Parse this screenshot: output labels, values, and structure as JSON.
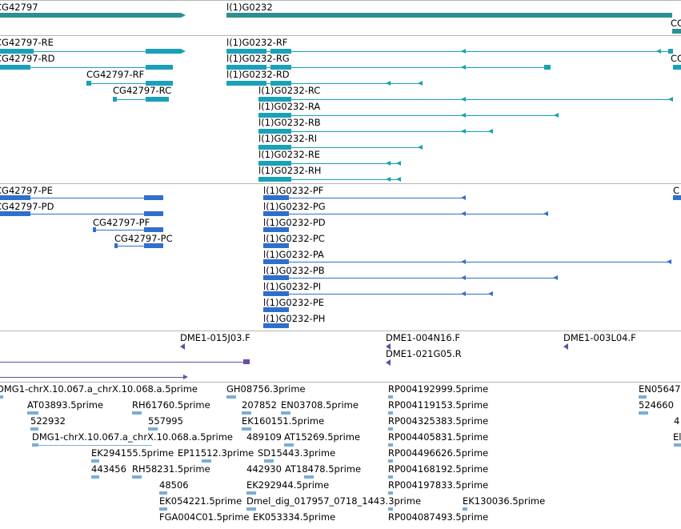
{
  "colors": {
    "gene": "#2f8f8f",
    "mrna": "#1aa0b8",
    "protein": "#2f6fcf",
    "clone": "#6a4ca0",
    "est": "#7aaed6",
    "separator": "#b4b4b4"
  },
  "genes": [
    {
      "name": "CG42797",
      "label": "CG42797"
    },
    {
      "name": "l1g0232",
      "label": "l(1)G0232"
    },
    {
      "name": "cg_partial",
      "label": "CG"
    }
  ],
  "mrna": {
    "left": [
      "CG42797-RE",
      "CG42797-RD",
      "CG42797-RF",
      "CG42797-RC"
    ],
    "right": [
      "l(1)G0232-RF",
      "l(1)G0232-RG",
      "l(1)G0232-RD",
      "l(1)G0232-RC",
      "l(1)G0232-RA",
      "l(1)G0232-RB",
      "l(1)G0232-RI",
      "l(1)G0232-RE",
      "l(1)G0232-RH"
    ],
    "edge": "CG"
  },
  "protein": {
    "left": [
      "CG42797-PE",
      "CG42797-PD",
      "CG42797-PF",
      "CG42797-PC"
    ],
    "right": [
      "l(1)G0232-PF",
      "l(1)G0232-PG",
      "l(1)G0232-PD",
      "l(1)G0232-PC",
      "l(1)G0232-PA",
      "l(1)G0232-PB",
      "l(1)G0232-PI",
      "l(1)G0232-PE",
      "l(1)G0232-PH"
    ],
    "edge": "C"
  },
  "clones": [
    "DME1-015J03.F",
    "DME1-004N16.F",
    "DME1-003L04.F",
    "DME1-021G05.R"
  ],
  "ests": {
    "a": [
      "DMG1-chrX.10.067.a_chrX.10.068.a.5prime",
      "AT03893.5prime",
      "522932",
      "DMG1-chrX.10.067.a_chrX.10.068.a.5prime",
      "EK294155.5prime",
      "443456"
    ],
    "b": [
      "RH61760.5prime",
      "557995",
      "EP11512.3prime",
      "RH58231.5prime",
      "48506",
      "EK054221.5prime",
      "FGA004C01.5prime"
    ],
    "c": [
      "GH08756.3prime",
      "207852",
      "EN03708.5prime",
      "EK160151.5prime",
      "489109",
      "AT15269.5prime",
      "SD15443.3prime",
      "442930",
      "AT18478.5prime",
      "EK292944.5prime",
      "Dmel_dig_017957_0718_1443.3prime",
      "EK053334.5prime"
    ],
    "d": [
      "RP004192999.5prime",
      "RP004119153.5prime",
      "RP004325383.5prime",
      "RP004405831.5prime",
      "RP004496626.5prime",
      "RP004168192.5prime",
      "RP004197833.5prime",
      "EK130036.5prime",
      "RP004087493.5prime"
    ],
    "e": [
      "EN05647",
      "524660",
      "4",
      "El"
    ]
  }
}
